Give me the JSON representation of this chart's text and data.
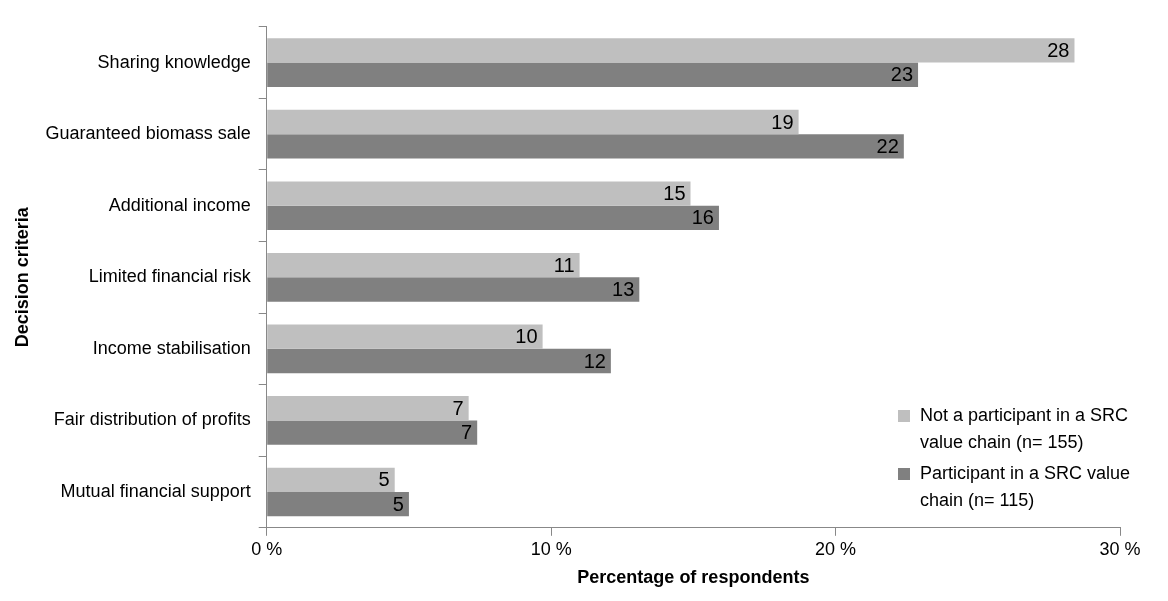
{
  "chart_data": {
    "type": "bar",
    "orientation": "horizontal",
    "xlabel": "Percentage of respondents",
    "ylabel": "Decision criteria",
    "categories": [
      "Sharing knowledge",
      "Guaranteed biomass sale",
      "Additional income",
      "Limited financial risk",
      "Income stabilisation",
      "Fair distribution of profits",
      "Mutual financial support"
    ],
    "series": [
      {
        "name": "Not a participant in a SRC value chain (n= 155)",
        "color": "#bfbfbf",
        "values": [
          28.4,
          18.7,
          14.9,
          11.0,
          9.7,
          7.1,
          4.5
        ],
        "value_labels": [
          "28",
          "19",
          "15",
          "11",
          "10",
          "7",
          "5"
        ]
      },
      {
        "name": "Participant in a SRC value chain (n= 115)",
        "color": "#808080",
        "values": [
          22.9,
          22.4,
          15.9,
          13.1,
          12.1,
          7.4,
          5.0
        ],
        "value_labels": [
          "23",
          "22",
          "16",
          "13",
          "12",
          "7",
          "5"
        ]
      }
    ],
    "xlim": [
      0,
      30
    ],
    "xticks": [
      {
        "value": 0,
        "label": "0 %"
      },
      {
        "value": 10,
        "label": "10 %"
      },
      {
        "value": 20,
        "label": "20 %"
      },
      {
        "value": 30,
        "label": "30 %"
      }
    ],
    "grid": false,
    "legend": "bottom right"
  }
}
